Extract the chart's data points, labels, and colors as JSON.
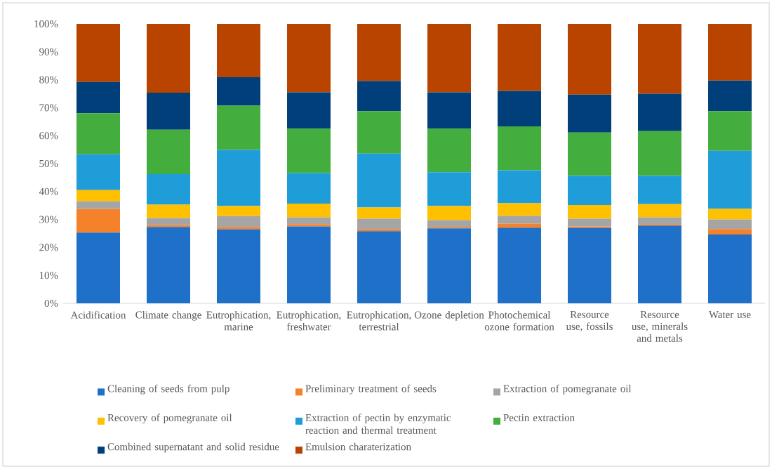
{
  "chart_data": {
    "type": "bar",
    "stacked": true,
    "legend": "bottom",
    "grid": false,
    "categories": [
      "Acidification",
      "Climate change",
      "Eutrophication, marine",
      "Eutrophication, freshwater",
      "Eutrophication, terrestrial",
      "Ozone depletion",
      "Photochemical ozone formation",
      "Resource use, fossils",
      "Resource use, minerals and metals",
      "Water use"
    ],
    "ylim": [
      0,
      100
    ],
    "yticks": [
      {
        "value": 0,
        "label": "0%"
      },
      {
        "value": 10,
        "label": "10%"
      },
      {
        "value": 20,
        "label": "20%"
      },
      {
        "value": 30,
        "label": "30%"
      },
      {
        "value": 40,
        "label": "40%"
      },
      {
        "value": 50,
        "label": "50%"
      },
      {
        "value": 60,
        "label": "60%"
      },
      {
        "value": 70,
        "label": "70%"
      },
      {
        "value": 80,
        "label": "80%"
      },
      {
        "value": 90,
        "label": "90%"
      },
      {
        "value": 100,
        "label": "100%"
      }
    ],
    "series": [
      {
        "name": "Cleaning of seeds from pulp",
        "color": "#1f70c8",
        "values": [
          25.3,
          27.3,
          26.5,
          27.5,
          25.8,
          26.8,
          27.1,
          27.0,
          27.8,
          24.6
        ]
      },
      {
        "name": "Preliminary treatment of seeds",
        "color": "#f5822a",
        "values": [
          8.4,
          0.7,
          0.8,
          0.8,
          0.8,
          0.5,
          1.4,
          0.5,
          0.5,
          2.0
        ]
      },
      {
        "name": "Extraction of pomegranate oil",
        "color": "#a5a5a5",
        "values": [
          2.8,
          2.5,
          3.9,
          2.5,
          3.7,
          2.5,
          2.8,
          2.8,
          2.5,
          3.4
        ]
      },
      {
        "name": "Recovery of pomegranate oil",
        "color": "#ffc000",
        "values": [
          4.0,
          4.8,
          3.6,
          4.9,
          4.0,
          5.0,
          4.5,
          4.9,
          4.7,
          3.8
        ]
      },
      {
        "name": "Extraction of pectin by enzymatic reaction and thermal treatment",
        "color": "#1f9dd9",
        "values": [
          12.8,
          10.9,
          20.1,
          10.9,
          19.3,
          12.1,
          11.8,
          10.4,
          10.1,
          20.8
        ]
      },
      {
        "name": "Pectin extraction",
        "color": "#43ae3e",
        "values": [
          14.7,
          15.9,
          15.8,
          15.9,
          15.2,
          15.6,
          15.7,
          15.5,
          16.0,
          14.2
        ]
      },
      {
        "name": "Combined supernatant and solid residue",
        "color": "#003f7a",
        "values": [
          11.2,
          13.3,
          10.2,
          13.0,
          10.8,
          13.0,
          12.7,
          13.6,
          13.4,
          10.9
        ]
      },
      {
        "name": "Emulsion charaterization",
        "color": "#b84400",
        "values": [
          20.8,
          24.6,
          19.1,
          24.5,
          20.4,
          24.5,
          24.0,
          25.3,
          25.0,
          20.3
        ]
      }
    ]
  }
}
